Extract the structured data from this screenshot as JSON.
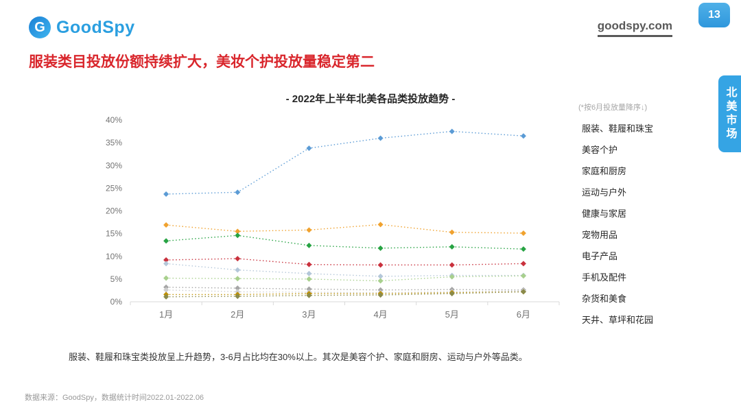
{
  "header": {
    "logo_text": "GoodSpy",
    "logo_initial": "G",
    "website": "goodspy.com",
    "page_number": "13",
    "side_tab": "北美市场"
  },
  "title": "服装类目投放份额持续扩大，美妆个护投放量稳定第二",
  "colors": {
    "brand_blue": "#2b9fe0",
    "title_red": "#d9262c",
    "badge_blue": "#35a4e4",
    "axis_gray": "#d9d9d9",
    "tick_text_gray": "#737373"
  },
  "chart_data": {
    "type": "line",
    "title": "- 2022年上半年北美各品类投放趋势 -",
    "sort_note": "(*按6月投放量降序↓)",
    "categories": [
      "1月",
      "2月",
      "3月",
      "4月",
      "5月",
      "6月"
    ],
    "ylabel": "",
    "xlabel": "",
    "ylim": [
      0,
      40
    ],
    "y_tick_step": 5,
    "y_tick_suffix": "%",
    "grid": false,
    "line_style": "dotted",
    "marker": "diamond",
    "legend_position": "right",
    "series": [
      {
        "name": "服装、鞋履和珠宝",
        "color": "#5b9bd5",
        "values": [
          23.7,
          24.1,
          33.8,
          36.0,
          37.5,
          36.5
        ]
      },
      {
        "name": "美容个护",
        "color": "#f0a22e",
        "values": [
          16.9,
          15.5,
          15.8,
          17.0,
          15.3,
          15.1
        ]
      },
      {
        "name": "家庭和厨房",
        "color": "#27a343",
        "values": [
          13.4,
          14.6,
          12.4,
          11.8,
          12.1,
          11.6
        ]
      },
      {
        "name": "运动与户外",
        "color": "#c9313d",
        "values": [
          9.2,
          9.5,
          8.2,
          8.1,
          8.1,
          8.4
        ]
      },
      {
        "name": "健康与家居",
        "color": "#b4c7d9",
        "values": [
          8.4,
          7.0,
          6.2,
          5.6,
          5.8,
          5.8
        ]
      },
      {
        "name": "宠物用品",
        "color": "#a8d08d",
        "values": [
          5.2,
          5.1,
          5.0,
          4.6,
          5.5,
          5.7
        ]
      },
      {
        "name": "电子产品",
        "color": "#a6a6a6",
        "values": [
          3.2,
          3.0,
          2.8,
          2.6,
          2.7,
          2.6
        ]
      },
      {
        "name": "手机及配件",
        "color": "#cfcfcf",
        "values": [
          2.6,
          2.2,
          2.1,
          2.0,
          2.2,
          2.4
        ]
      },
      {
        "name": "杂货和美食",
        "color": "#bf9000",
        "values": [
          1.6,
          1.6,
          1.8,
          1.8,
          2.0,
          2.2
        ]
      },
      {
        "name": "天井、草坪和花园",
        "color": "#8a8a4a",
        "values": [
          1.1,
          1.2,
          1.4,
          1.5,
          1.8,
          2.2
        ]
      }
    ]
  },
  "summary": "服装、鞋履和珠宝类投放呈上升趋势，3-6月占比均在30%以上。其次是美容个护、家庭和厨房、运动与户外等品类。",
  "footer": "数据来源：GoodSpy，数据统计时间2022.01-2022.06"
}
